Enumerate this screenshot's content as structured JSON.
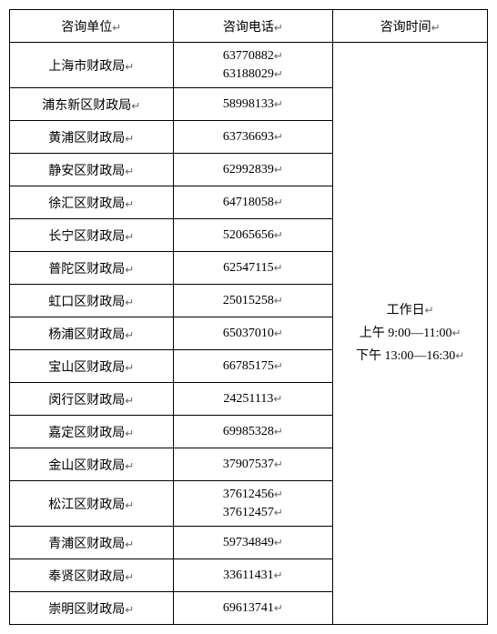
{
  "table": {
    "headers": {
      "unit": "咨询单位",
      "phone": "咨询电话",
      "time": "咨询时间"
    },
    "marker": "↵",
    "time_content": {
      "line1": "工作日",
      "line2": "上午 9:00—11:00",
      "line3": "下午 13:00—16:30"
    },
    "rows": [
      {
        "unit": "上海市财政局",
        "phones": [
          "63770882",
          "63188029"
        ]
      },
      {
        "unit": "浦东新区财政局",
        "phones": [
          "58998133"
        ]
      },
      {
        "unit": "黄浦区财政局",
        "phones": [
          "63736693"
        ]
      },
      {
        "unit": "静安区财政局",
        "phones": [
          "62992839"
        ]
      },
      {
        "unit": "徐汇区财政局",
        "phones": [
          "64718058"
        ]
      },
      {
        "unit": "长宁区财政局",
        "phones": [
          "52065656"
        ]
      },
      {
        "unit": "普陀区财政局",
        "phones": [
          "62547115"
        ]
      },
      {
        "unit": "虹口区财政局",
        "phones": [
          "25015258"
        ]
      },
      {
        "unit": "杨浦区财政局",
        "phones": [
          "65037010"
        ]
      },
      {
        "unit": "宝山区财政局",
        "phones": [
          "66785175"
        ]
      },
      {
        "unit": "闵行区财政局",
        "phones": [
          "24251113"
        ]
      },
      {
        "unit": "嘉定区财政局",
        "phones": [
          "69985328"
        ]
      },
      {
        "unit": "金山区财政局",
        "phones": [
          "37907537"
        ]
      },
      {
        "unit": "松江区财政局",
        "phones": [
          "37612456",
          "37612457"
        ]
      },
      {
        "unit": "青浦区财政局",
        "phones": [
          "59734849"
        ]
      },
      {
        "unit": "奉贤区财政局",
        "phones": [
          "33611431"
        ]
      },
      {
        "unit": "崇明区财政局",
        "phones": [
          "69613741"
        ]
      }
    ]
  }
}
